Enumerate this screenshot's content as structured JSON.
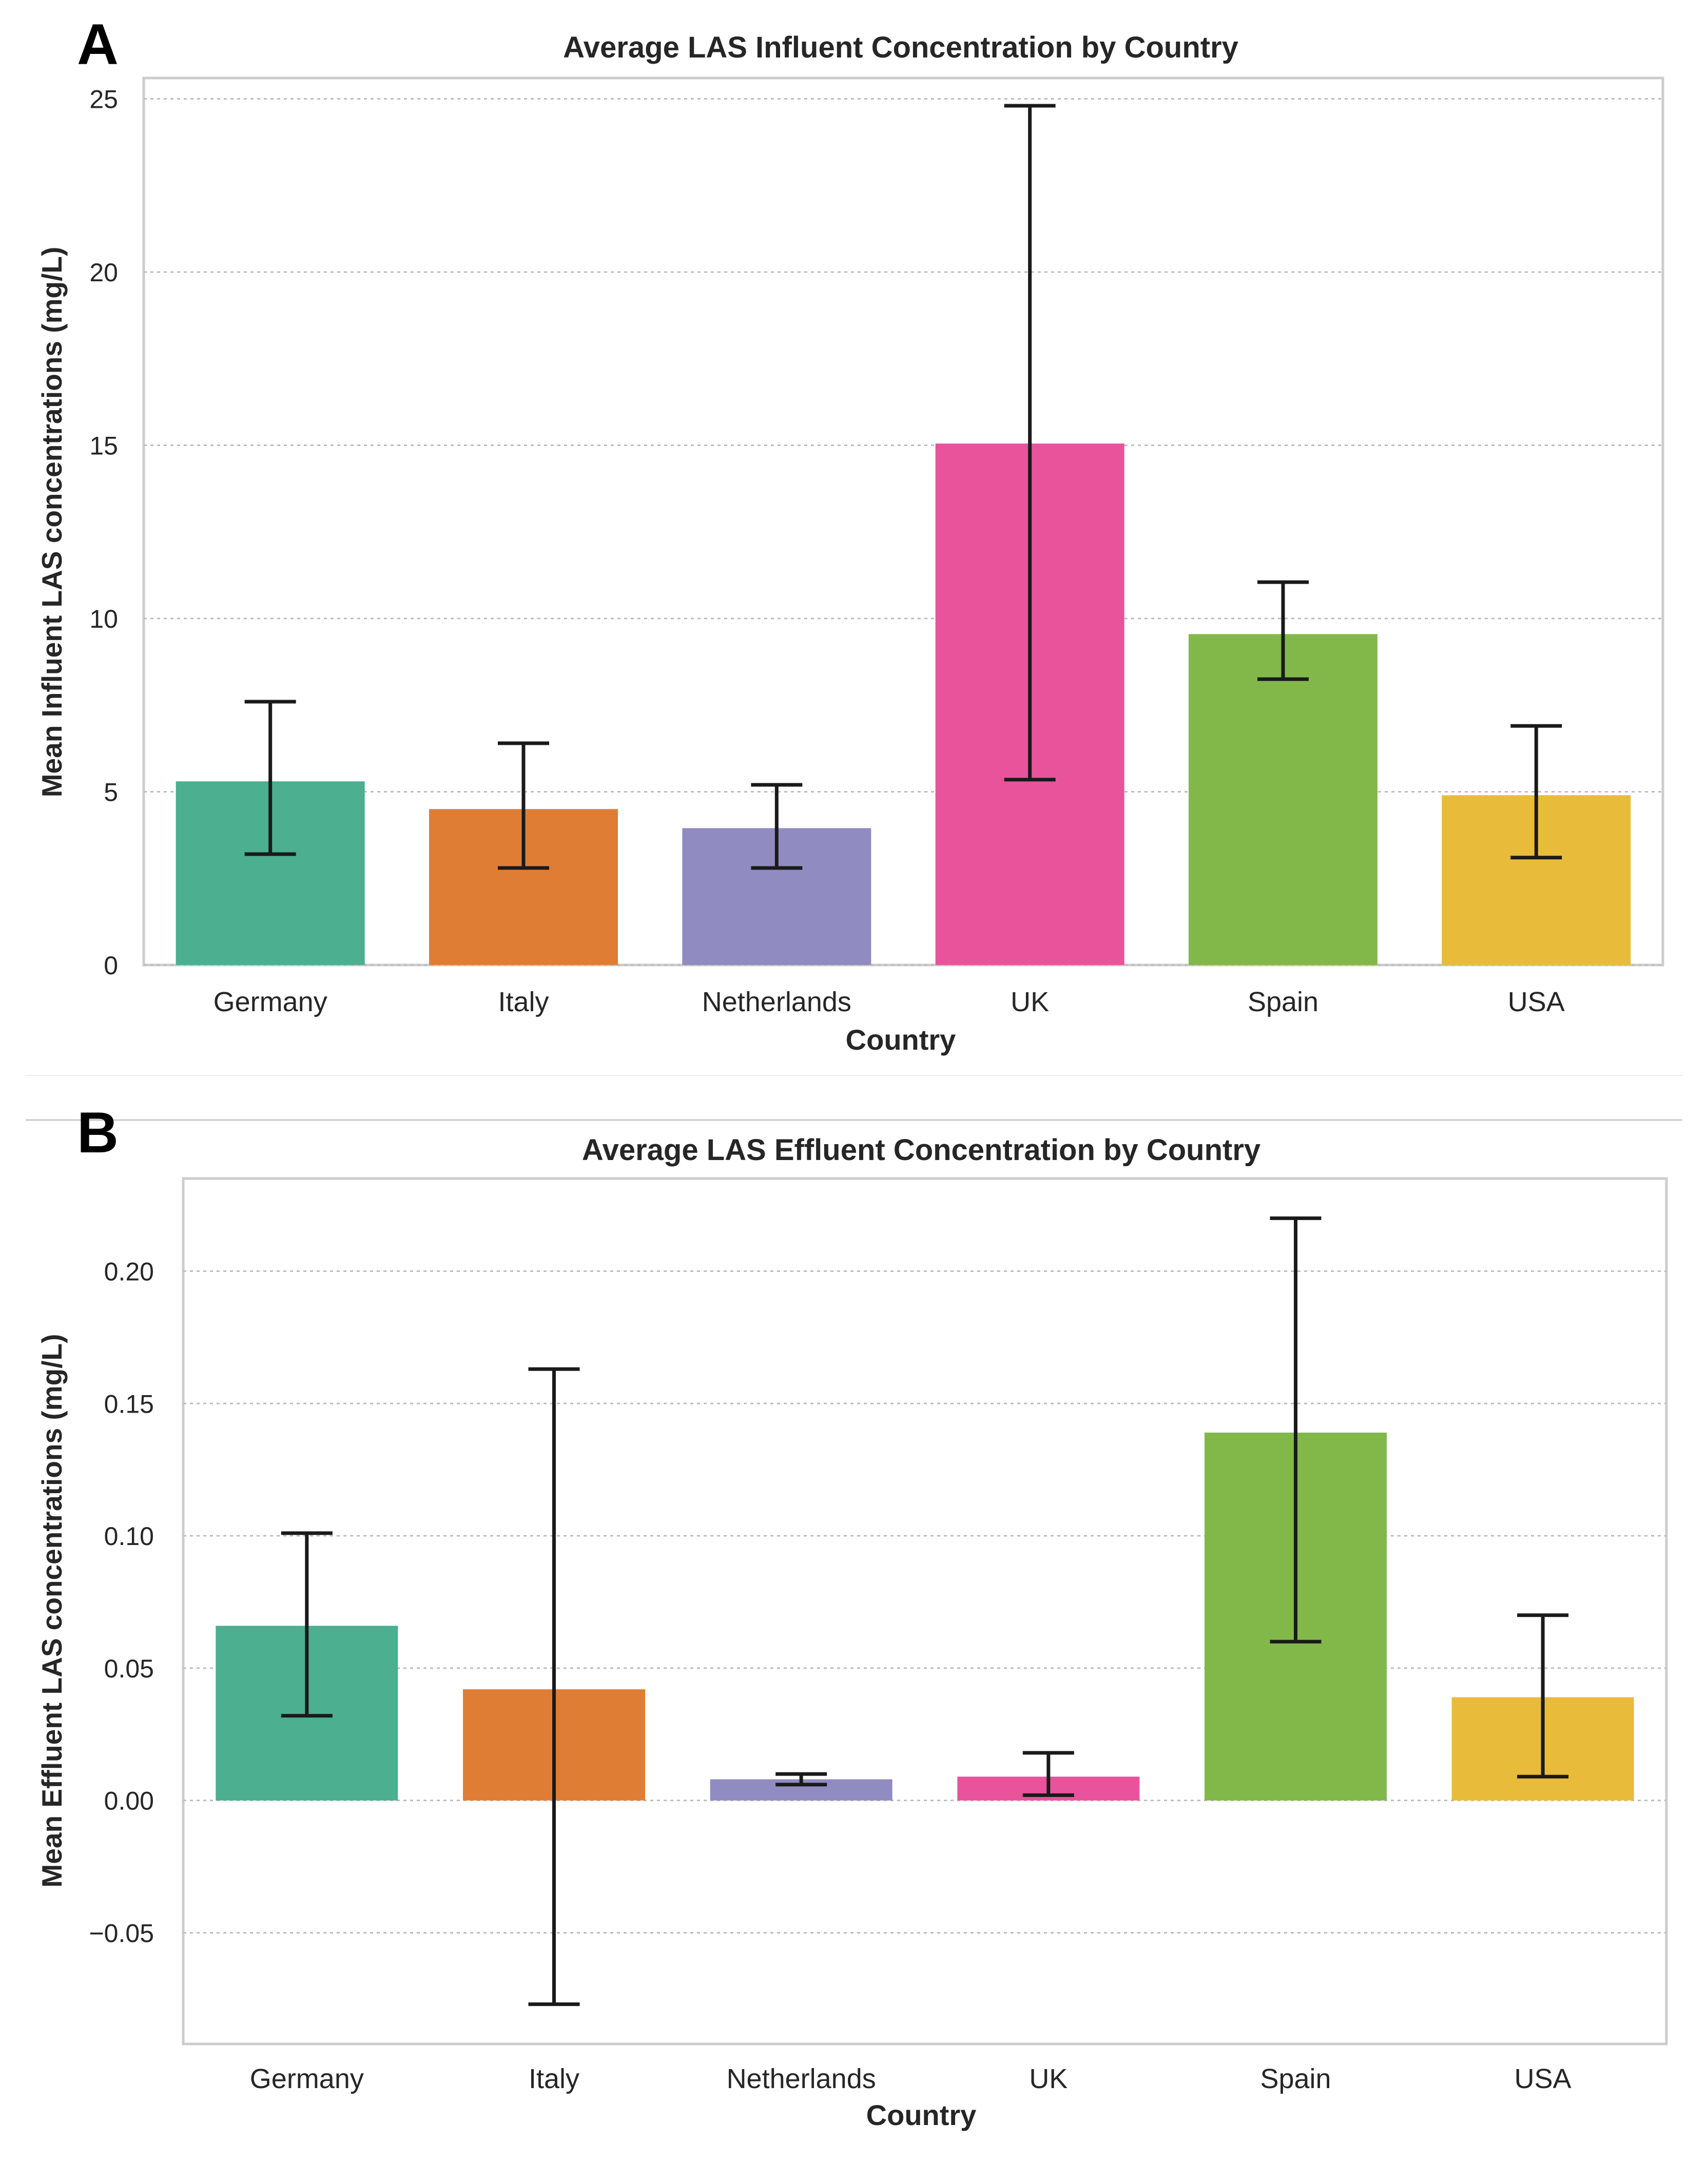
{
  "chart_data": [
    {
      "type": "bar",
      "panel": "A",
      "title": "Average LAS Influent Concentration by Country",
      "xlabel": "Country",
      "ylabel": "Mean Influent LAS concentrations (mg/L)",
      "categories": [
        "Germany",
        "Italy",
        "Netherlands",
        "UK",
        "Spain",
        "USA"
      ],
      "values": [
        5.3,
        4.5,
        3.95,
        15.05,
        9.55,
        4.9
      ],
      "error_low": [
        3.2,
        2.8,
        2.8,
        5.35,
        8.25,
        3.1
      ],
      "error_high": [
        7.6,
        6.4,
        5.2,
        24.8,
        11.05,
        6.9
      ],
      "colors": [
        "#4caf8f",
        "#e07d35",
        "#908bc0",
        "#e8539c",
        "#82b84a",
        "#e9bb3a"
      ],
      "ylim": [
        0,
        25.6
      ],
      "yticks": [
        0,
        5,
        10,
        15,
        20,
        25
      ],
      "ytick_labels": [
        "0",
        "5",
        "10",
        "15",
        "20",
        "25"
      ],
      "grid": true
    },
    {
      "type": "bar",
      "panel": "B",
      "title": "Average LAS Effluent Concentration by Country",
      "xlabel": "Country",
      "ylabel": "Mean Effluent LAS concentrations (mg/L)",
      "categories": [
        "Germany",
        "Italy",
        "Netherlands",
        "UK",
        "Spain",
        "USA"
      ],
      "values": [
        0.066,
        0.042,
        0.008,
        0.009,
        0.139,
        0.039
      ],
      "error_low": [
        0.032,
        -0.077,
        0.006,
        0.002,
        0.06,
        0.009
      ],
      "error_high": [
        0.101,
        0.163,
        0.01,
        0.018,
        0.22,
        0.07
      ],
      "colors": [
        "#4caf8f",
        "#e07d35",
        "#908bc0",
        "#e8539c",
        "#82b84a",
        "#e9bb3a"
      ],
      "ylim": [
        -0.092,
        0.235
      ],
      "yticks": [
        -0.05,
        0.0,
        0.05,
        0.1,
        0.15,
        0.2
      ],
      "ytick_labels": [
        "−0.05",
        "0.00",
        "0.05",
        "0.10",
        "0.15",
        "0.20"
      ],
      "grid": true
    }
  ]
}
